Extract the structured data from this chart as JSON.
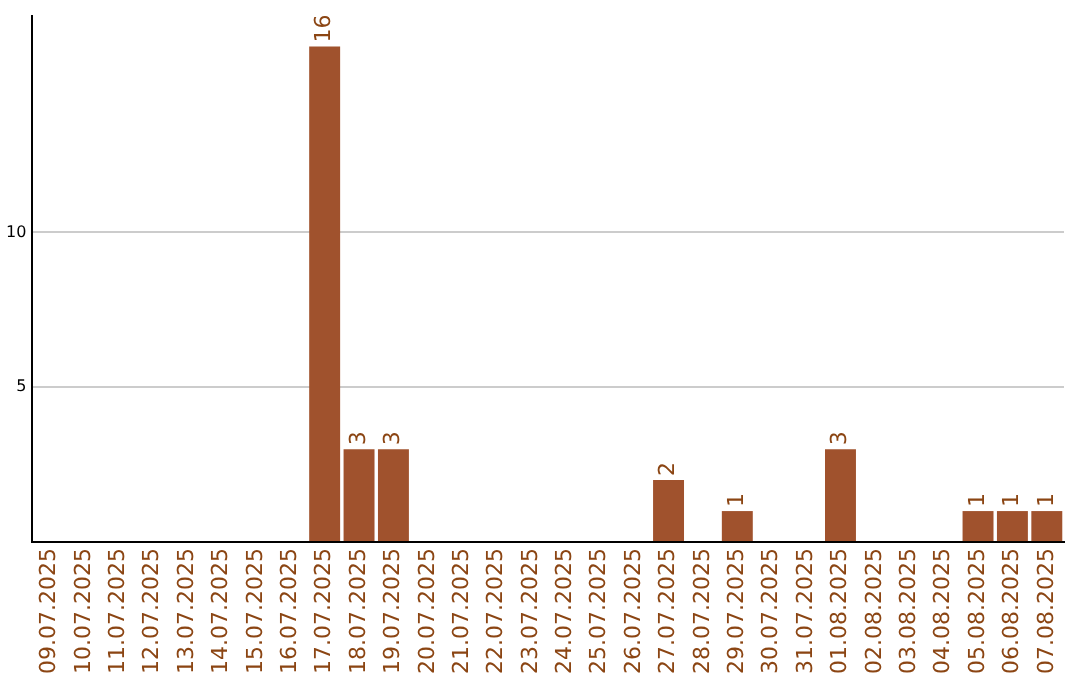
{
  "chart_data": {
    "type": "bar",
    "categories": [
      "09.07.2025",
      "10.07.2025",
      "11.07.2025",
      "12.07.2025",
      "13.07.2025",
      "14.07.2025",
      "15.07.2025",
      "16.07.2025",
      "17.07.2025",
      "18.07.2025",
      "19.07.2025",
      "20.07.2025",
      "21.07.2025",
      "22.07.2025",
      "23.07.2025",
      "24.07.2025",
      "25.07.2025",
      "26.07.2025",
      "27.07.2025",
      "28.07.2025",
      "29.07.2025",
      "30.07.2025",
      "31.07.2025",
      "01.08.2025",
      "02.08.2025",
      "03.08.2025",
      "04.08.2025",
      "05.08.2025",
      "06.08.2025",
      "07.08.2025"
    ],
    "values": [
      0,
      0,
      0,
      0,
      0,
      0,
      0,
      0,
      16,
      3,
      3,
      0,
      0,
      0,
      0,
      0,
      0,
      0,
      2,
      0,
      1,
      0,
      0,
      3,
      0,
      0,
      0,
      1,
      1,
      1
    ],
    "value_labels": [
      null,
      null,
      null,
      null,
      null,
      null,
      null,
      null,
      "16",
      "3",
      "3",
      null,
      null,
      null,
      null,
      null,
      null,
      null,
      "2",
      null,
      "1",
      null,
      null,
      "3",
      null,
      null,
      null,
      "1",
      "1",
      "1"
    ],
    "color": "#a0522d",
    "ylim": [
      0,
      17
    ],
    "yticks": [
      {
        "value": 0,
        "label": null
      },
      5,
      10
    ],
    "grid": "y",
    "legend": false
  }
}
